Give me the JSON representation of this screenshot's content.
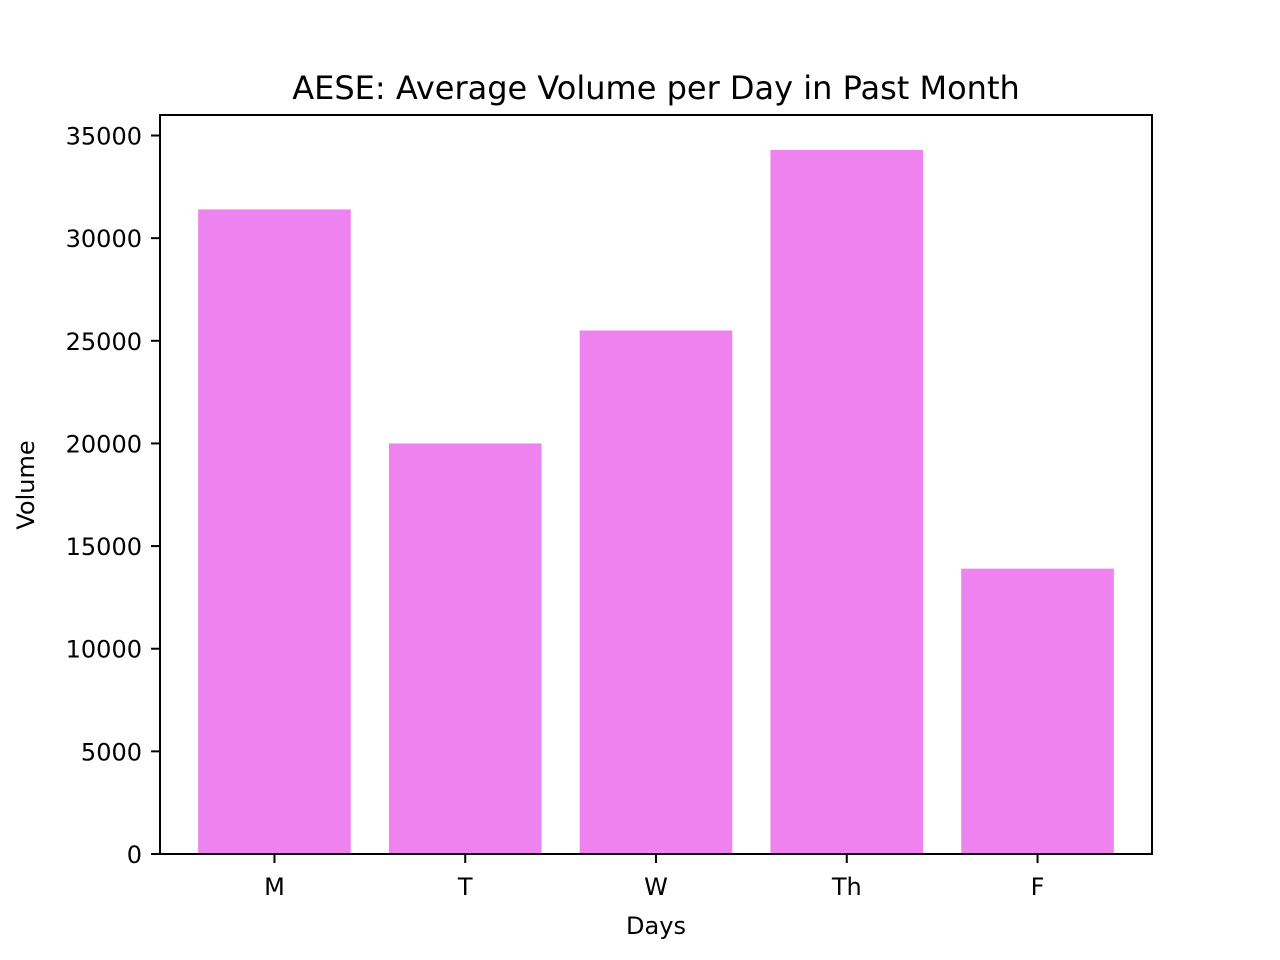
{
  "chart_data": {
    "type": "bar",
    "title": "AESE: Average Volume per Day in Past Month",
    "xlabel": "Days",
    "ylabel": "Volume",
    "categories": [
      "M",
      "T",
      "W",
      "Th",
      "F"
    ],
    "values": [
      31400,
      20000,
      25500,
      34300,
      13900
    ],
    "ylim": [
      0,
      36000
    ],
    "yticks": [
      0,
      5000,
      10000,
      15000,
      20000,
      25000,
      30000,
      35000
    ],
    "grid": false,
    "legend": "none",
    "bar_color": "#ee82ee",
    "axis_color": "#000000"
  }
}
